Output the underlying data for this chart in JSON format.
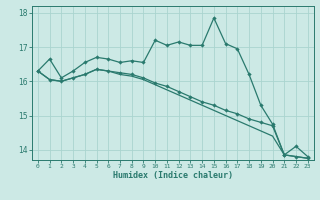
{
  "xlabel": "Humidex (Indice chaleur)",
  "bg_color": "#cce9e5",
  "grid_color": "#aad4cf",
  "line_color": "#2a7a6e",
  "xlim": [
    -0.5,
    23.5
  ],
  "ylim": [
    13.7,
    18.2
  ],
  "yticks": [
    14,
    15,
    16,
    17,
    18
  ],
  "xticks": [
    0,
    1,
    2,
    3,
    4,
    5,
    6,
    7,
    8,
    9,
    10,
    11,
    12,
    13,
    14,
    15,
    16,
    17,
    18,
    19,
    20,
    21,
    22,
    23
  ],
  "line1_x": [
    0,
    1,
    2,
    3,
    4,
    5,
    6,
    7,
    8,
    9,
    10,
    11,
    12,
    13,
    14,
    15,
    16,
    17,
    18,
    19,
    20,
    21,
    22,
    23
  ],
  "line1_y": [
    16.3,
    16.65,
    16.1,
    16.3,
    16.55,
    16.7,
    16.65,
    16.55,
    16.6,
    16.55,
    17.2,
    17.05,
    17.15,
    17.05,
    17.05,
    17.85,
    17.1,
    16.95,
    16.2,
    15.3,
    14.75,
    13.85,
    14.1,
    13.8
  ],
  "line2_x": [
    0,
    1,
    2,
    3,
    4,
    5,
    6,
    7,
    8,
    9,
    10,
    11,
    12,
    13,
    14,
    15,
    16,
    17,
    18,
    19,
    20,
    21,
    22,
    23
  ],
  "line2_y": [
    16.3,
    16.05,
    16.0,
    16.1,
    16.2,
    16.35,
    16.3,
    16.25,
    16.2,
    16.1,
    15.95,
    15.85,
    15.7,
    15.55,
    15.4,
    15.3,
    15.15,
    15.05,
    14.9,
    14.8,
    14.7,
    13.85,
    13.8,
    13.75
  ],
  "line3_x": [
    0,
    1,
    2,
    3,
    4,
    5,
    6,
    7,
    8,
    9,
    10,
    11,
    12,
    13,
    14,
    15,
    16,
    17,
    18,
    19,
    20,
    21,
    22,
    23
  ],
  "line3_y": [
    16.3,
    16.05,
    16.0,
    16.1,
    16.2,
    16.35,
    16.3,
    16.2,
    16.15,
    16.05,
    15.9,
    15.75,
    15.6,
    15.45,
    15.3,
    15.15,
    15.0,
    14.85,
    14.7,
    14.55,
    14.4,
    13.85,
    13.8,
    13.75
  ]
}
